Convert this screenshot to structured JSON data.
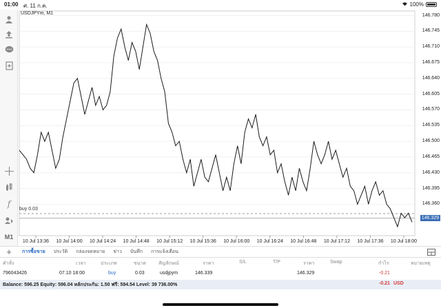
{
  "status": {
    "time": "01:00",
    "date": "ศ. 11 ก.ค.",
    "battery": "100%",
    "wifi_icon": "wifi-icon",
    "battery_icon": "battery-icon"
  },
  "toolbar": {
    "icons": [
      "account-icon",
      "trade-icon",
      "chat-icon",
      "new-document-icon",
      "crosshair-icon",
      "indicators-icon",
      "function-icon",
      "objects-icon"
    ],
    "timeframe": "M1"
  },
  "chart": {
    "symbol_label": "USDJPYm, M1",
    "current_price": "146.329",
    "buy_label": "buy 0.03",
    "line_color": "#1a1a1a",
    "price_tag_color": "#3b6fb5"
  },
  "chart_data": {
    "type": "line",
    "title": "USDJPYm, M1",
    "ylim": [
      146.29,
      146.79
    ],
    "yticks": [
      "146.780",
      "146.745",
      "146.710",
      "146.675",
      "146.640",
      "146.605",
      "146.570",
      "146.535",
      "146.500",
      "146.465",
      "146.430",
      "146.395",
      "146.360"
    ],
    "xticks": [
      "10 Jul 13:36",
      "10 Jul 14:00",
      "10 Jul 14:24",
      "10 Jul 14:48",
      "10 Jul 15:12",
      "10 Jul 15:36",
      "10 Jul 16:00",
      "10 Jul 16:24",
      "10 Jul 16:48",
      "10 Jul 17:12",
      "10 Jul 17:36",
      "10 Jul 18:00"
    ],
    "buy_level": 146.339,
    "last_price": 146.329,
    "series": [
      {
        "values": [
          146.48,
          146.47,
          146.46,
          146.44,
          146.43,
          146.47,
          146.52,
          146.5,
          146.52,
          146.48,
          146.44,
          146.46,
          146.51,
          146.55,
          146.59,
          146.63,
          146.64,
          146.6,
          146.56,
          146.59,
          146.62,
          146.58,
          146.6,
          146.57,
          146.58,
          146.61,
          146.69,
          146.73,
          146.75,
          146.71,
          146.68,
          146.72,
          146.7,
          146.66,
          146.71,
          146.76,
          146.74,
          146.7,
          146.68,
          146.64,
          146.61,
          146.54,
          146.52,
          146.49,
          146.5,
          146.46,
          146.43,
          146.46,
          146.4,
          146.43,
          146.46,
          146.42,
          146.41,
          146.44,
          146.47,
          146.43,
          146.39,
          146.42,
          146.39,
          146.45,
          146.49,
          146.45,
          146.52,
          146.55,
          146.53,
          146.56,
          146.51,
          146.49,
          146.51,
          146.47,
          146.48,
          146.43,
          146.45,
          146.41,
          146.38,
          146.42,
          146.39,
          146.44,
          146.41,
          146.39,
          146.44,
          146.5,
          146.47,
          146.45,
          146.47,
          146.5,
          146.46,
          146.48,
          146.45,
          146.42,
          146.44,
          146.4,
          146.39,
          146.36,
          146.38,
          146.4,
          146.36,
          146.39,
          146.41,
          146.38,
          146.39,
          146.36,
          146.35,
          146.33,
          146.31,
          146.34,
          146.33,
          146.34,
          146.32
        ]
      }
    ],
    "grid": true
  },
  "tabs": [
    "การซื้อขาย",
    "ประวัติ",
    "กล่องจดหมาย",
    "ข่าว",
    "บันทึก",
    "การแจ้งเตือน"
  ],
  "table": {
    "headers": [
      "คำสั่ง",
      "เวลา",
      "ประเภท",
      "ขนาด",
      "สัญลักษณ์",
      "ราคา",
      "S/L",
      "T/P",
      "ราคา",
      "Swap",
      "กำไร",
      "หมายเหตุ"
    ],
    "row": {
      "order": "796043426",
      "time": "07.10 18:00",
      "type": "buy",
      "size": "0.03",
      "symbol": "usdjpym",
      "open_price": "146.339",
      "current_price": "146.329",
      "profit": "-0.21"
    }
  },
  "balance": {
    "text": "Balance: 596.25 Equity: 596.04 หลักประกัน: 1.50 ฟรี: 594.54 Level: 39 736.00%",
    "total": "-0.21",
    "currency": "USD"
  }
}
